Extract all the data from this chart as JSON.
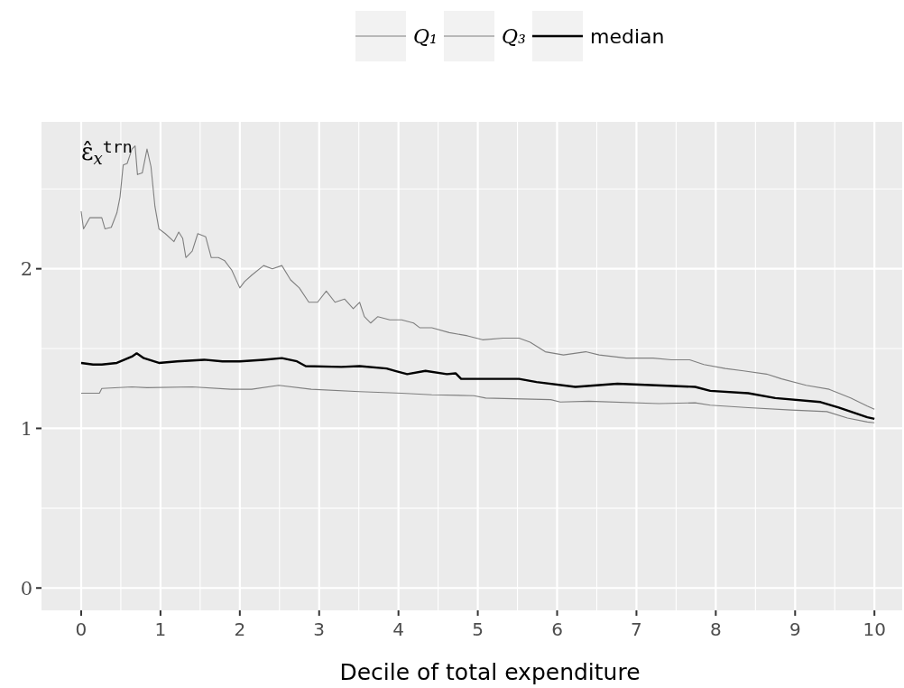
{
  "chart_data": {
    "type": "line",
    "xlabel": "Decile of total expenditure",
    "ylabel": "ε̂$_{x}$$^{trn}$",
    "xlim": [
      -0.5,
      10.35
    ],
    "ylim": [
      -0.14,
      2.92
    ],
    "xticks": [
      0,
      1,
      2,
      3,
      4,
      5,
      6,
      7,
      8,
      9,
      10
    ],
    "yticks": [
      0,
      1,
      2
    ],
    "grid": true,
    "legend": "top",
    "marker": "none",
    "line_style": "solid",
    "series": [
      {
        "name": "Q₁",
        "color": "#7f7f7f",
        "x": [
          0,
          0.23,
          0.26,
          0.64,
          0.83,
          1.4,
          1.89,
          2.15,
          2.49,
          2.9,
          3.51,
          4.04,
          4.42,
          4.95,
          5.1,
          5.92,
          6.04,
          6.4,
          7.28,
          7.74,
          7.93,
          8.41,
          8.95,
          9.4,
          9.66,
          9.91,
          10
        ],
        "values": [
          1.22,
          1.22,
          1.25,
          1.26,
          1.255,
          1.26,
          1.245,
          1.245,
          1.27,
          1.245,
          1.23,
          1.22,
          1.21,
          1.205,
          1.19,
          1.18,
          1.165,
          1.17,
          1.155,
          1.16,
          1.145,
          1.13,
          1.115,
          1.105,
          1.065,
          1.04,
          1.035
        ]
      },
      {
        "name": "Q₃",
        "color": "#7f7f7f",
        "x": [
          0,
          0.03,
          0.11,
          0.26,
          0.3,
          0.38,
          0.45,
          0.49,
          0.53,
          0.58,
          0.64,
          0.68,
          0.71,
          0.77,
          0.83,
          0.88,
          0.93,
          0.98,
          1.06,
          1.17,
          1.23,
          1.28,
          1.32,
          1.4,
          1.47,
          1.57,
          1.64,
          1.73,
          1.81,
          1.9,
          2.0,
          2.06,
          2.15,
          2.3,
          2.41,
          2.53,
          2.64,
          2.75,
          2.87,
          2.98,
          3.09,
          3.2,
          3.32,
          3.43,
          3.51,
          3.57,
          3.65,
          3.74,
          3.89,
          4.04,
          4.19,
          4.27,
          4.42,
          4.64,
          4.87,
          5.06,
          5.32,
          5.52,
          5.66,
          5.85,
          6.08,
          6.36,
          6.53,
          6.87,
          7.21,
          7.44,
          7.67,
          7.85,
          8.12,
          8.35,
          8.64,
          8.83,
          9.14,
          9.43,
          9.7,
          9.91,
          10
        ],
        "values": [
          2.36,
          2.25,
          2.32,
          2.32,
          2.25,
          2.26,
          2.35,
          2.45,
          2.65,
          2.66,
          2.75,
          2.77,
          2.59,
          2.6,
          2.75,
          2.64,
          2.39,
          2.25,
          2.22,
          2.17,
          2.23,
          2.19,
          2.07,
          2.11,
          2.22,
          2.2,
          2.07,
          2.07,
          2.05,
          1.99,
          1.88,
          1.92,
          1.96,
          2.02,
          2.0,
          2.02,
          1.93,
          1.88,
          1.79,
          1.79,
          1.86,
          1.79,
          1.81,
          1.75,
          1.79,
          1.7,
          1.66,
          1.7,
          1.68,
          1.68,
          1.66,
          1.63,
          1.63,
          1.6,
          1.58,
          1.555,
          1.565,
          1.565,
          1.54,
          1.48,
          1.46,
          1.48,
          1.46,
          1.44,
          1.44,
          1.43,
          1.43,
          1.4,
          1.375,
          1.36,
          1.34,
          1.31,
          1.27,
          1.245,
          1.19,
          1.14,
          1.12
        ]
      },
      {
        "name": "median",
        "color": "#000000",
        "x": [
          0,
          0.15,
          0.26,
          0.45,
          0.64,
          0.7,
          0.79,
          0.98,
          1.21,
          1.55,
          1.78,
          2.0,
          2.3,
          2.53,
          2.72,
          2.83,
          3.28,
          3.51,
          3.85,
          3.96,
          4.11,
          4.34,
          4.61,
          4.72,
          4.79,
          5.52,
          5.74,
          6.23,
          6.76,
          7.25,
          7.74,
          7.93,
          8.41,
          8.75,
          9.32,
          9.55,
          9.91,
          10
        ],
        "values": [
          1.41,
          1.4,
          1.4,
          1.41,
          1.45,
          1.47,
          1.44,
          1.41,
          1.42,
          1.43,
          1.42,
          1.42,
          1.43,
          1.44,
          1.42,
          1.39,
          1.385,
          1.39,
          1.375,
          1.36,
          1.34,
          1.36,
          1.34,
          1.345,
          1.31,
          1.31,
          1.29,
          1.26,
          1.28,
          1.27,
          1.26,
          1.235,
          1.22,
          1.19,
          1.165,
          1.13,
          1.07,
          1.06
        ]
      }
    ]
  }
}
